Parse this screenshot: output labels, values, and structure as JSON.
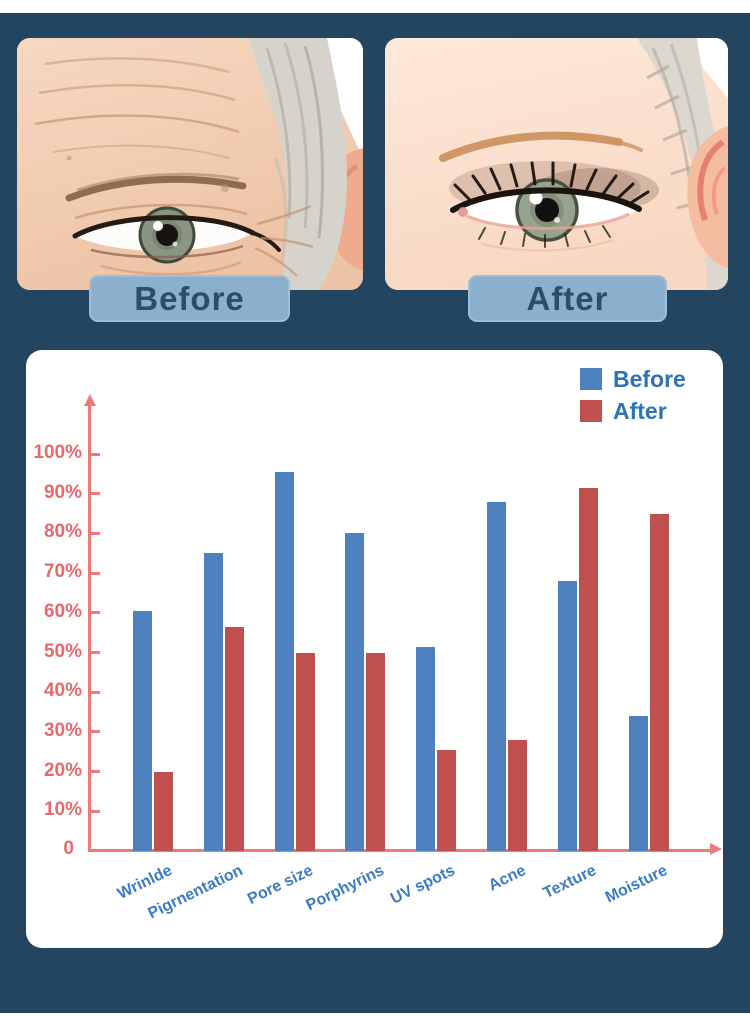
{
  "page": {
    "background_color": "#244560",
    "card_color": "#ffffff"
  },
  "comparison": {
    "before_label": "Before",
    "after_label": "After",
    "button_bg": "#8BB0CE",
    "button_text_color": "#294F6D",
    "photos": [
      {
        "name": "before-photo",
        "alt": "aged eye with wrinkles"
      },
      {
        "name": "after-photo",
        "alt": "young smooth eye"
      }
    ]
  },
  "chart_data": {
    "type": "bar",
    "categories": [
      "Wrinlde",
      "Pigrnentation",
      "Pore size",
      "Porphyrins",
      "UV spots",
      "Acne",
      "Texture",
      "Moisture"
    ],
    "series": [
      {
        "name": "Before",
        "color": "#4E81BD",
        "values": [
          60.5,
          75,
          95.5,
          80,
          51.5,
          88,
          68,
          34
        ]
      },
      {
        "name": "After",
        "color": "#C0504D",
        "values": [
          20,
          56.5,
          50,
          50,
          25.5,
          28,
          91.5,
          85
        ]
      }
    ],
    "title": "",
    "xlabel": "",
    "ylabel": "",
    "ylim": [
      0,
      110
    ],
    "ytick_max": 100,
    "ytick_step": 10,
    "ytick_suffix": "%",
    "zero_label": "0",
    "grid": false,
    "legend_position": "top-right",
    "axis_color": "#F0797C",
    "tick_label_color": "#E8686D",
    "category_label_color": "#3B7CC4",
    "legend_text_color": "#2E74B5"
  }
}
